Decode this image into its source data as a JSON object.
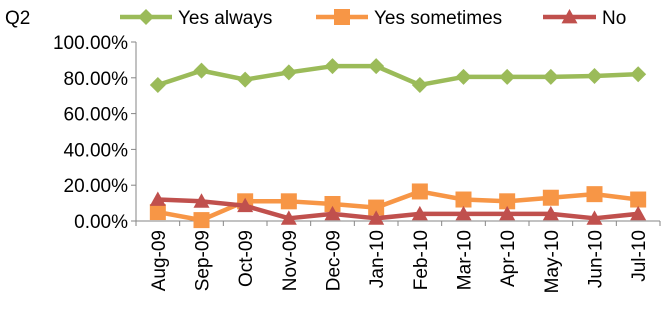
{
  "chart_data": {
    "type": "line",
    "title": "Q2",
    "xlabel": "",
    "ylabel": "",
    "categories": [
      "Aug-09",
      "Sep-09",
      "Oct-09",
      "Nov-09",
      "Dec-09",
      "Jan-10",
      "Feb-10",
      "Mar-10",
      "Apr-10",
      "May-10",
      "Jun-10",
      "Jul-10"
    ],
    "ylim": [
      0,
      100
    ],
    "y_ticks": [
      "0.00%",
      "20.00%",
      "40.00%",
      "60.00%",
      "80.00%",
      "100.00%"
    ],
    "grid": false,
    "legend_position": "top",
    "series": [
      {
        "name": "Yes always",
        "color": "#9BBB59",
        "marker": "diamond",
        "values": [
          76,
          84,
          79,
          83,
          86.5,
          86.5,
          76,
          80.5,
          80.5,
          80.5,
          81,
          82
        ]
      },
      {
        "name": "Yes sometimes",
        "color": "#F79646",
        "marker": "square",
        "values": [
          5,
          0.5,
          11,
          11,
          9.5,
          7.5,
          16.5,
          12,
          11,
          13,
          15,
          12
        ]
      },
      {
        "name": "No",
        "color": "#C0504D",
        "marker": "triangle",
        "values": [
          12,
          11,
          8.5,
          1.5,
          4,
          1.5,
          4,
          4,
          4,
          4,
          1.5,
          4
        ]
      }
    ]
  }
}
